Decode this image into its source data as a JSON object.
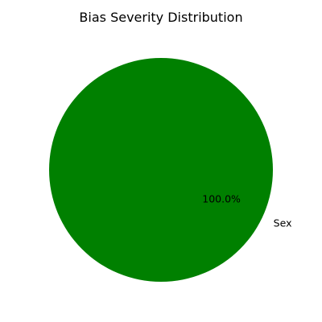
{
  "chart_data": {
    "type": "pie",
    "title": "Bias Severity Distribution",
    "slices": [
      {
        "label": "Sex",
        "value": 100.0,
        "percent_label": "100.0%",
        "color": "#008000"
      }
    ]
  }
}
